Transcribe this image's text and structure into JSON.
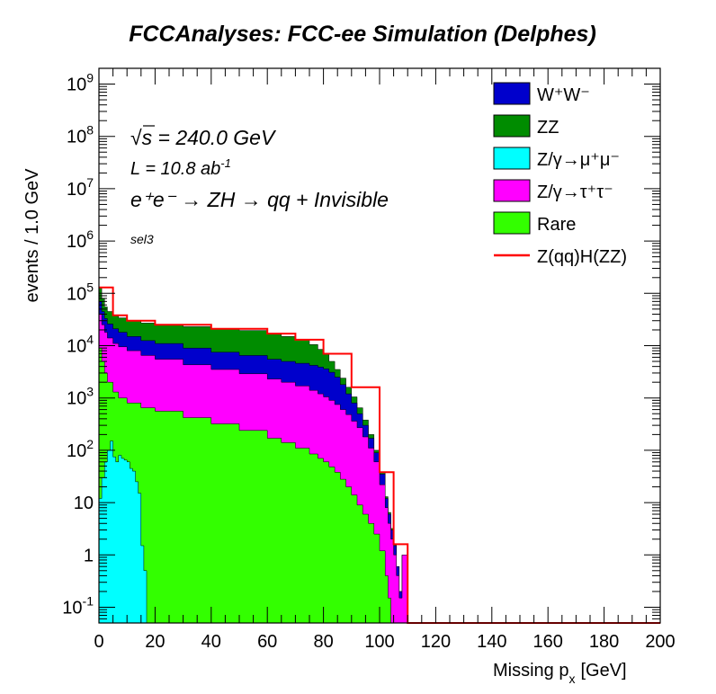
{
  "chart_data": {
    "type": "area",
    "title": "FCCAnalyses: FCC-ee Simulation (Delphes)",
    "xlabel": "Missing p",
    "xlabel_sub": "x",
    "xlabel_unit": "[GeV]",
    "ylabel": "events / 1.0 GeV",
    "xlim": [
      0,
      200
    ],
    "ylim": [
      0.05,
      2000000000
    ],
    "log_y": true,
    "grid": false,
    "legend_position": "top-right",
    "x_ticks": [
      "0",
      "20",
      "40",
      "60",
      "80",
      "100",
      "120",
      "140",
      "160",
      "180",
      "200"
    ],
    "y_ticks": [
      {
        "base": "10",
        "exp": "-1"
      },
      {
        "base": "1",
        "exp": ""
      },
      {
        "base": "10",
        "exp": ""
      },
      {
        "base": "10",
        "exp": "2"
      },
      {
        "base": "10",
        "exp": "3"
      },
      {
        "base": "10",
        "exp": "4"
      },
      {
        "base": "10",
        "exp": "5"
      },
      {
        "base": "10",
        "exp": "6"
      },
      {
        "base": "10",
        "exp": "7"
      },
      {
        "base": "10",
        "exp": "8"
      },
      {
        "base": "10",
        "exp": "9"
      }
    ],
    "annotations": {
      "sqrt_s_symbol": "√",
      "sqrt_s_var": "s",
      "sqrt_s_value": " = 240.0 GeV",
      "lumi": "L = 10.8 ab",
      "lumi_exp": "-1",
      "process": "e⁺e⁻ → ZH → qq + Invisible",
      "selection": "sel3"
    },
    "legend": [
      {
        "label": "W⁺W⁻",
        "color": "#0000cc",
        "kind": "box"
      },
      {
        "label": "ZZ",
        "color": "#008c00",
        "kind": "box"
      },
      {
        "label": "Z/γ→μ⁺μ⁻",
        "color": "#00ffff",
        "kind": "box"
      },
      {
        "label": "Z/γ→τ⁺τ⁻",
        "color": "#ff00ff",
        "kind": "box"
      },
      {
        "label": "Rare",
        "color": "#33ff00",
        "kind": "box"
      },
      {
        "label": "Z(qq)H(ZZ)",
        "color": "#ff0000",
        "kind": "line"
      }
    ],
    "x": [
      0,
      1,
      2,
      3,
      5,
      7,
      10,
      15,
      20,
      30,
      40,
      50,
      60,
      65,
      70,
      75,
      78,
      80,
      82,
      84,
      86,
      88,
      90,
      92,
      94,
      96,
      98,
      100,
      102,
      103,
      104,
      105,
      106,
      107,
      108,
      109,
      110
    ],
    "stack_boundaries": [
      {
        "name": "Rare top",
        "values": [
          9000,
          5000,
          3000,
          2000,
          1300,
          1000,
          800,
          650,
          560,
          420,
          320,
          240,
          170,
          140,
          110,
          85,
          70,
          60,
          48,
          38,
          28,
          20,
          14,
          9,
          6,
          4,
          2.5,
          1.2,
          0.4,
          0.15,
          0.05,
          0.05,
          0.05,
          0.05,
          0.05,
          0.05,
          0.05
        ]
      },
      {
        "name": "Z/γ→τ⁺τ⁻ top",
        "values": [
          40000,
          25000,
          18000,
          14000,
          11000,
          9500,
          8000,
          6500,
          5500,
          4300,
          3500,
          2900,
          2300,
          2000,
          1700,
          1400,
          1200,
          1050,
          900,
          750,
          600,
          480,
          360,
          270,
          180,
          110,
          60,
          22,
          8,
          4,
          2,
          1,
          0.4,
          0.15,
          1,
          1,
          0.05
        ]
      },
      {
        "name": "W⁺W⁻ top",
        "values": [
          70000,
          45000,
          33000,
          26000,
          21000,
          18000,
          15000,
          12500,
          11000,
          9000,
          7500,
          6500,
          5500,
          5000,
          4600,
          4200,
          3900,
          3600,
          3100,
          2500,
          1800,
          1200,
          800,
          500,
          300,
          170,
          90,
          35,
          12,
          6,
          3,
          1.5,
          0.6,
          0.2,
          1,
          1,
          0.05
        ]
      },
      {
        "name": "ZZ top",
        "values": [
          130000,
          80000,
          55000,
          45000,
          38000,
          34000,
          30000,
          27000,
          25000,
          23000,
          21000,
          19500,
          17000,
          15000,
          13000,
          10500,
          8500,
          7000,
          5000,
          3500,
          2400,
          1600,
          1050,
          650,
          380,
          200,
          100,
          38,
          13,
          6.5,
          3.2,
          1.6,
          0.6,
          0.2,
          1,
          1,
          0.05
        ]
      }
    ],
    "mumu_x": [
      0,
      1,
      2,
      3,
      4,
      5,
      6,
      7,
      8,
      9,
      10,
      11,
      12,
      13,
      14,
      15,
      16,
      17
    ],
    "mumu_values": [
      12,
      30,
      60,
      100,
      150,
      75,
      60,
      80,
      70,
      65,
      60,
      45,
      40,
      25,
      15,
      1.5,
      0.5,
      0.05
    ],
    "signal_x": [
      0,
      5,
      10,
      20,
      40,
      60,
      70,
      80,
      90,
      100,
      105,
      110,
      200
    ],
    "signal_values": [
      130000,
      38000,
      30000,
      25000,
      21000,
      17000,
      13000,
      7000,
      1600,
      38,
      1.6,
      0.05,
      0.05
    ]
  }
}
